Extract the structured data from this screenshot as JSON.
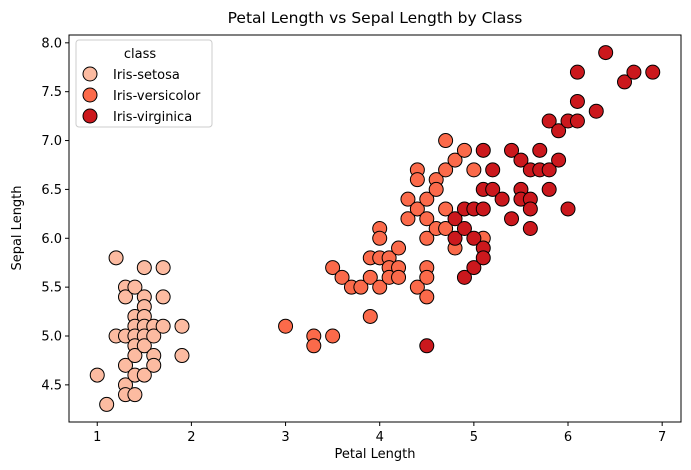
{
  "chart_data": {
    "type": "scatter",
    "title": "Petal Length vs Sepal Length by Class",
    "xlabel": "Petal Length",
    "ylabel": "Sepal Length",
    "xlim": [
      0.7,
      7.2
    ],
    "ylim": [
      4.12,
      8.08
    ],
    "xticks": [
      1,
      2,
      3,
      4,
      5,
      6,
      7
    ],
    "yticks": [
      4.5,
      5.0,
      5.5,
      6.0,
      6.5,
      7.0,
      7.5,
      8.0
    ],
    "ytick_labels": [
      "4.5",
      "5.0",
      "5.5",
      "6.0",
      "6.5",
      "7.0",
      "7.5",
      "8.0"
    ],
    "grid": false,
    "legend": {
      "title": "class",
      "placement": "top-left"
    },
    "series": [
      {
        "name": "Iris-setosa",
        "color": "#fcbba1",
        "points": [
          [
            1.0,
            4.6
          ],
          [
            1.1,
            4.3
          ],
          [
            1.2,
            5.8
          ],
          [
            1.2,
            5.0
          ],
          [
            1.3,
            5.5
          ],
          [
            1.3,
            5.4
          ],
          [
            1.3,
            5.0
          ],
          [
            1.3,
            4.7
          ],
          [
            1.3,
            4.5
          ],
          [
            1.3,
            4.4
          ],
          [
            1.4,
            5.5
          ],
          [
            1.4,
            5.2
          ],
          [
            1.4,
            5.1
          ],
          [
            1.4,
            5.0
          ],
          [
            1.4,
            4.9
          ],
          [
            1.4,
            4.8
          ],
          [
            1.4,
            4.6
          ],
          [
            1.4,
            4.4
          ],
          [
            1.5,
            5.7
          ],
          [
            1.5,
            5.4
          ],
          [
            1.5,
            5.3
          ],
          [
            1.5,
            5.2
          ],
          [
            1.5,
            5.1
          ],
          [
            1.5,
            5.0
          ],
          [
            1.5,
            4.9
          ],
          [
            1.5,
            4.6
          ],
          [
            1.6,
            5.1
          ],
          [
            1.6,
            5.0
          ],
          [
            1.6,
            4.8
          ],
          [
            1.6,
            4.7
          ],
          [
            1.7,
            5.7
          ],
          [
            1.7,
            5.4
          ],
          [
            1.7,
            5.1
          ],
          [
            1.9,
            5.1
          ],
          [
            1.9,
            4.8
          ]
        ]
      },
      {
        "name": "Iris-versicolor",
        "color": "#fb6a4a",
        "points": [
          [
            3.0,
            5.1
          ],
          [
            3.3,
            5.0
          ],
          [
            3.3,
            4.9
          ],
          [
            3.5,
            5.7
          ],
          [
            3.5,
            5.0
          ],
          [
            3.6,
            5.6
          ],
          [
            3.7,
            5.5
          ],
          [
            3.8,
            5.5
          ],
          [
            3.9,
            5.8
          ],
          [
            3.9,
            5.6
          ],
          [
            3.9,
            5.2
          ],
          [
            4.0,
            6.1
          ],
          [
            4.0,
            6.0
          ],
          [
            4.0,
            5.8
          ],
          [
            4.0,
            5.5
          ],
          [
            4.1,
            5.8
          ],
          [
            4.1,
            5.7
          ],
          [
            4.1,
            5.6
          ],
          [
            4.2,
            5.9
          ],
          [
            4.2,
            5.7
          ],
          [
            4.2,
            5.6
          ],
          [
            4.3,
            6.4
          ],
          [
            4.3,
            6.2
          ],
          [
            4.4,
            6.7
          ],
          [
            4.4,
            6.6
          ],
          [
            4.4,
            6.3
          ],
          [
            4.4,
            5.5
          ],
          [
            4.5,
            6.4
          ],
          [
            4.5,
            6.2
          ],
          [
            4.5,
            6.0
          ],
          [
            4.5,
            5.7
          ],
          [
            4.5,
            5.6
          ],
          [
            4.5,
            5.4
          ],
          [
            4.6,
            6.6
          ],
          [
            4.6,
            6.5
          ],
          [
            4.6,
            6.1
          ],
          [
            4.7,
            7.0
          ],
          [
            4.7,
            6.7
          ],
          [
            4.7,
            6.3
          ],
          [
            4.7,
            6.1
          ],
          [
            4.8,
            6.8
          ],
          [
            4.8,
            5.9
          ],
          [
            4.9,
            6.9
          ],
          [
            5.0,
            6.7
          ],
          [
            5.1,
            6.0
          ]
        ]
      },
      {
        "name": "Iris-virginica",
        "color": "#cb181d",
        "points": [
          [
            4.5,
            4.9
          ],
          [
            4.8,
            6.2
          ],
          [
            4.8,
            6.0
          ],
          [
            4.9,
            6.3
          ],
          [
            4.9,
            6.1
          ],
          [
            4.9,
            5.6
          ],
          [
            5.0,
            6.3
          ],
          [
            5.0,
            6.0
          ],
          [
            5.0,
            5.7
          ],
          [
            5.1,
            6.9
          ],
          [
            5.1,
            6.5
          ],
          [
            5.1,
            6.3
          ],
          [
            5.1,
            5.9
          ],
          [
            5.1,
            5.8
          ],
          [
            5.2,
            6.7
          ],
          [
            5.2,
            6.5
          ],
          [
            5.3,
            6.4
          ],
          [
            5.4,
            6.9
          ],
          [
            5.4,
            6.2
          ],
          [
            5.5,
            6.8
          ],
          [
            5.5,
            6.5
          ],
          [
            5.5,
            6.4
          ],
          [
            5.6,
            6.7
          ],
          [
            5.6,
            6.4
          ],
          [
            5.6,
            6.3
          ],
          [
            5.6,
            6.1
          ],
          [
            5.7,
            6.9
          ],
          [
            5.7,
            6.7
          ],
          [
            5.8,
            7.2
          ],
          [
            5.8,
            6.7
          ],
          [
            5.8,
            6.5
          ],
          [
            5.9,
            7.1
          ],
          [
            5.9,
            6.8
          ],
          [
            6.0,
            7.2
          ],
          [
            6.0,
            6.3
          ],
          [
            6.1,
            7.7
          ],
          [
            6.1,
            7.4
          ],
          [
            6.1,
            7.2
          ],
          [
            6.3,
            7.3
          ],
          [
            6.4,
            7.9
          ],
          [
            6.6,
            7.6
          ],
          [
            6.7,
            7.7
          ],
          [
            6.9,
            7.7
          ]
        ]
      }
    ]
  }
}
